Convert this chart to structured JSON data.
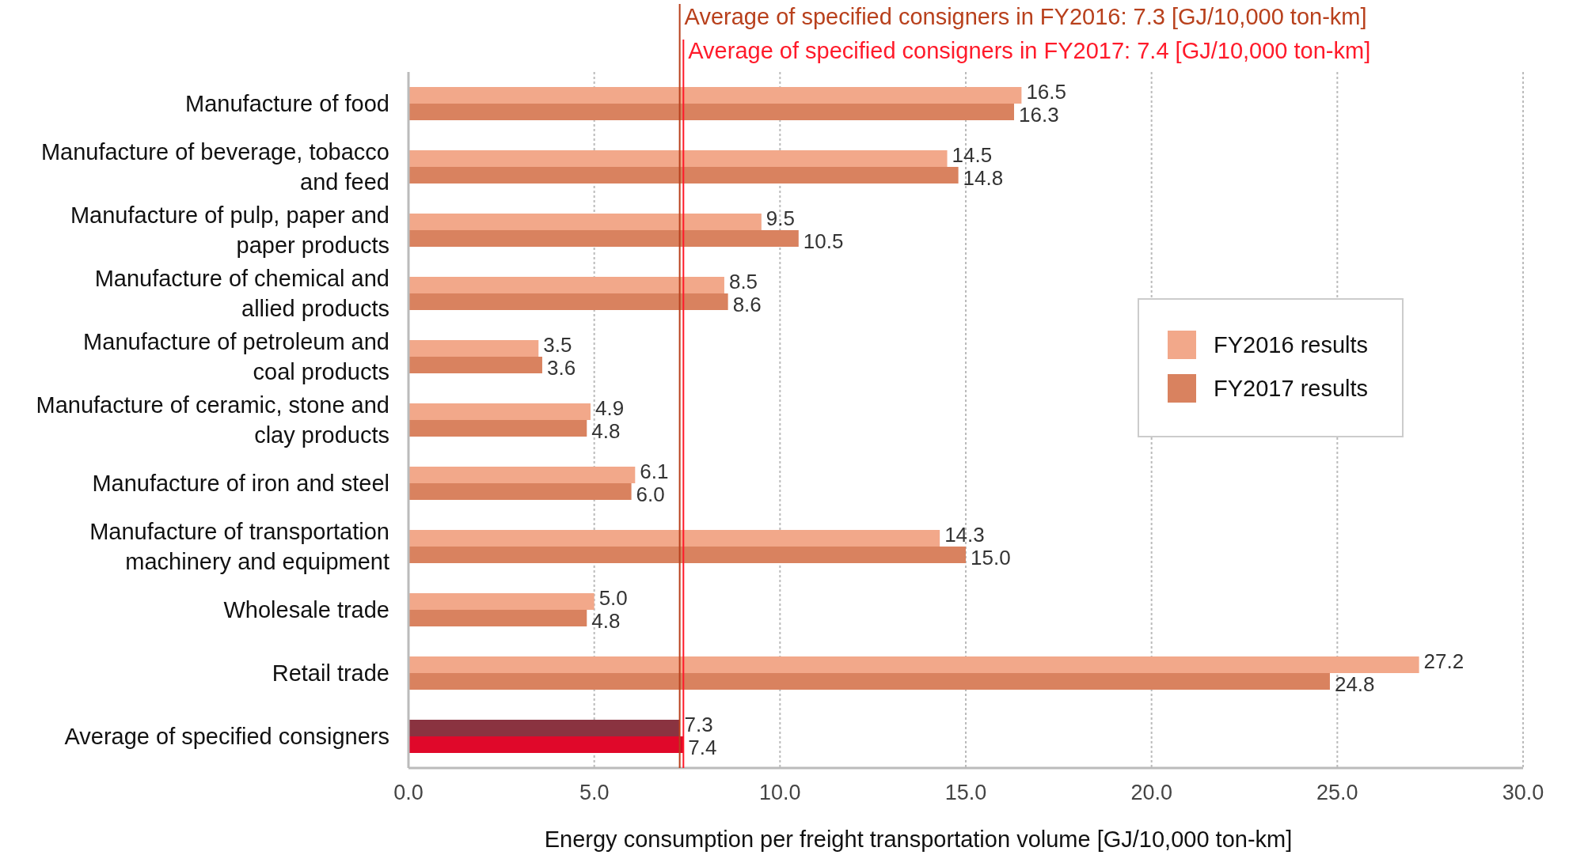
{
  "chart_data": {
    "type": "bar",
    "orientation": "horizontal",
    "xlabel": "Energy consumption per freight transportation volume [GJ/10,000 ton-km]",
    "categories": [
      "Manufacture of food",
      "Manufacture of beverage, tobacco\nand feed",
      "Manufacture of pulp, paper and\npaper products",
      "Manufacture of chemical and\nallied products",
      "Manufacture of petroleum and\ncoal products",
      "Manufacture of ceramic, stone and\nclay products",
      "Manufacture of iron and steel",
      "Manufacture of transportation\nmachinery and equipment",
      "Wholesale trade",
      "Retail trade",
      "Average of specified consigners"
    ],
    "series": [
      {
        "name": "FY2016 results",
        "color": "#f2a88a",
        "colors": [
          "#f2a88a",
          "#f2a88a",
          "#f2a88a",
          "#f2a88a",
          "#f2a88a",
          "#f2a88a",
          "#f2a88a",
          "#f2a88a",
          "#f2a88a",
          "#f2a88a",
          "#8a3340"
        ],
        "values": [
          16.5,
          14.5,
          9.5,
          8.5,
          3.5,
          4.9,
          6.1,
          14.3,
          5.0,
          27.2,
          7.3
        ],
        "value_labels": [
          "16.5",
          "14.5",
          "9.5",
          "8.5",
          "3.5",
          "4.9",
          "6.1",
          "14.3",
          "5.0",
          "27.2",
          "7.3"
        ]
      },
      {
        "name": "FY2017 results",
        "color": "#d9825f",
        "colors": [
          "#d9825f",
          "#d9825f",
          "#d9825f",
          "#d9825f",
          "#d9825f",
          "#d9825f",
          "#d9825f",
          "#d9825f",
          "#d9825f",
          "#d9825f",
          "#e0082a"
        ],
        "values": [
          16.3,
          14.8,
          10.5,
          8.6,
          3.6,
          4.8,
          6.0,
          15.0,
          4.8,
          24.8,
          7.4
        ],
        "value_labels": [
          "16.3",
          "14.8",
          "10.5",
          "8.6",
          "3.6",
          "4.8",
          "6.0",
          "15.0",
          "4.8",
          "24.8",
          "7.4"
        ]
      }
    ],
    "xlim": [
      0,
      30
    ],
    "xticks": [
      {
        "value": 0,
        "label": "0.0"
      },
      {
        "value": 5,
        "label": "5.0"
      },
      {
        "value": 10,
        "label": "10.0"
      },
      {
        "value": 15,
        "label": "15.0"
      },
      {
        "value": 20,
        "label": "20.0"
      },
      {
        "value": 25,
        "label": "25.0"
      },
      {
        "value": 30,
        "label": "30.0"
      }
    ],
    "grid": "x",
    "legend": "right",
    "ref_lines": [
      {
        "axis": "x",
        "value": 7.3,
        "label": "Average of specified consigners in FY2016: 7.3 [GJ/10,000 ton-km]",
        "color": "#b8401c"
      },
      {
        "axis": "x",
        "value": 7.4,
        "label": "Average of specified consigners in FY2017: 7.4 [GJ/10,000 ton-km]",
        "color": "#ff1a2a"
      }
    ]
  }
}
